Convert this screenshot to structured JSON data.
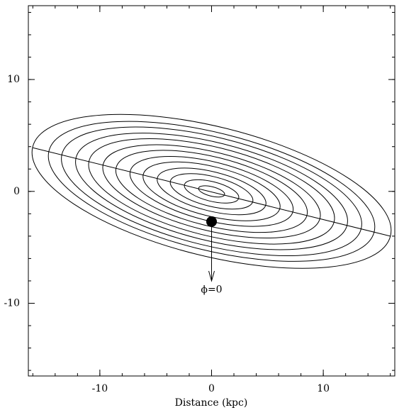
{
  "chart_data": {
    "type": "ellipses",
    "xlabel": "Distance (kpc)",
    "xlim": [
      -16.4,
      16.4
    ],
    "ylim": [
      -16.5,
      16.6
    ],
    "xticks": [
      -10,
      0,
      10
    ],
    "yticks": [
      -10,
      0,
      10
    ],
    "xticks_minor": [
      -16,
      -14,
      -12,
      -10,
      -8,
      -6,
      -4,
      -2,
      0,
      2,
      4,
      6,
      8,
      10,
      12,
      14,
      16
    ],
    "yticks_minor": [
      -16,
      -14,
      -12,
      -10,
      -8,
      -6,
      -4,
      -2,
      0,
      2,
      4,
      6,
      8,
      10,
      12,
      14,
      16
    ],
    "semi_major": [
      1.2,
      2.5,
      3.8,
      5.0,
      6.3,
      7.5,
      8.8,
      10.0,
      11.3,
      12.5,
      13.8,
      15.0,
      16.5
    ],
    "axis_ratio": 0.35,
    "tilt_deg": -14,
    "color": "#000000",
    "axis_line": {
      "x": [
        -16,
        16
      ],
      "y": [
        3.9,
        -4
      ]
    },
    "marker": {
      "x": 0,
      "y": -2.7
    },
    "arrow": {
      "x": 0,
      "y_from": -2.7,
      "y_to": -8
    },
    "annotation": {
      "text": "ϕ=0",
      "x": 0,
      "y": -8.8
    }
  }
}
